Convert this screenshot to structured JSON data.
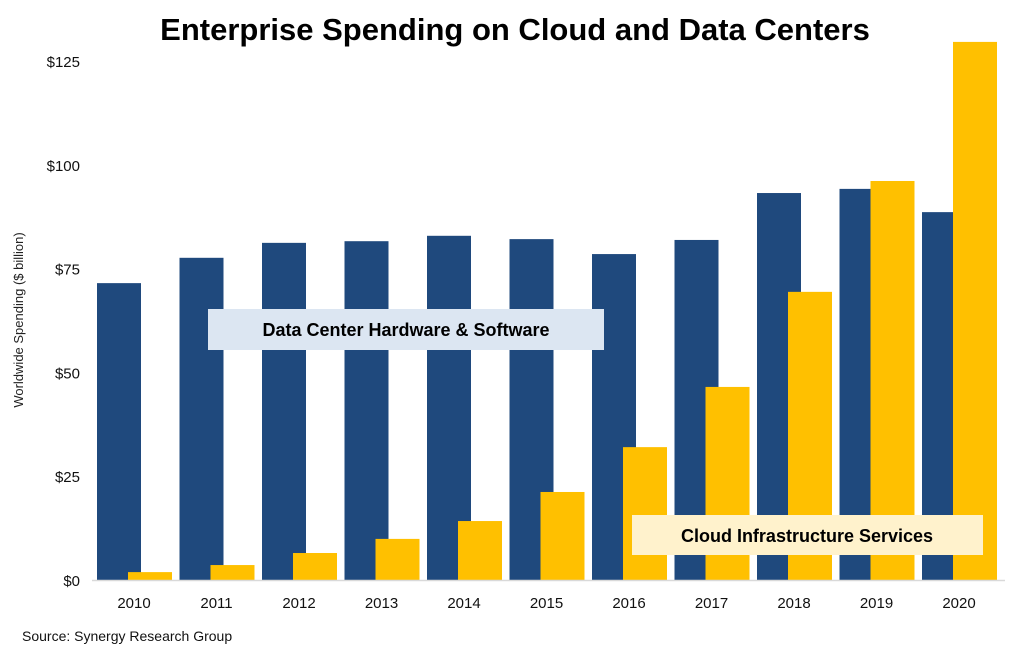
{
  "chart_data": {
    "type": "bar",
    "title": "Enterprise Spending on Cloud and Data Centers",
    "xlabel": "",
    "ylabel": "Worldwide Spending ($ billion)",
    "ylim": [
      0,
      130
    ],
    "yticks": [
      "$0",
      "$25",
      "$50",
      "$75",
      "$100",
      "$125"
    ],
    "ytick_values": [
      0,
      25,
      50,
      75,
      100,
      125
    ],
    "grid": false,
    "categories": [
      "2010",
      "2011",
      "2012",
      "2013",
      "2014",
      "2015",
      "2016",
      "2017",
      "2018",
      "2019",
      "2020"
    ],
    "series": [
      {
        "name": "Data Center Hardware & Software",
        "color": "#1f497d",
        "values": [
          71.5,
          77.6,
          81.2,
          81.6,
          82.9,
          82.1,
          78.5,
          81.9,
          93.2,
          94.2,
          88.6
        ]
      },
      {
        "name": "Cloud Infrastructure Services",
        "color": "#ffc000",
        "values": [
          1.9,
          3.6,
          6.5,
          9.9,
          14.2,
          21.2,
          32.0,
          46.5,
          69.4,
          96.1,
          129.6
        ]
      }
    ],
    "annotations": {
      "dc_label_bg": "#dce6f2",
      "cloud_label_bg": "#fff2cc"
    },
    "source": "Source: Synergy Research Group"
  }
}
